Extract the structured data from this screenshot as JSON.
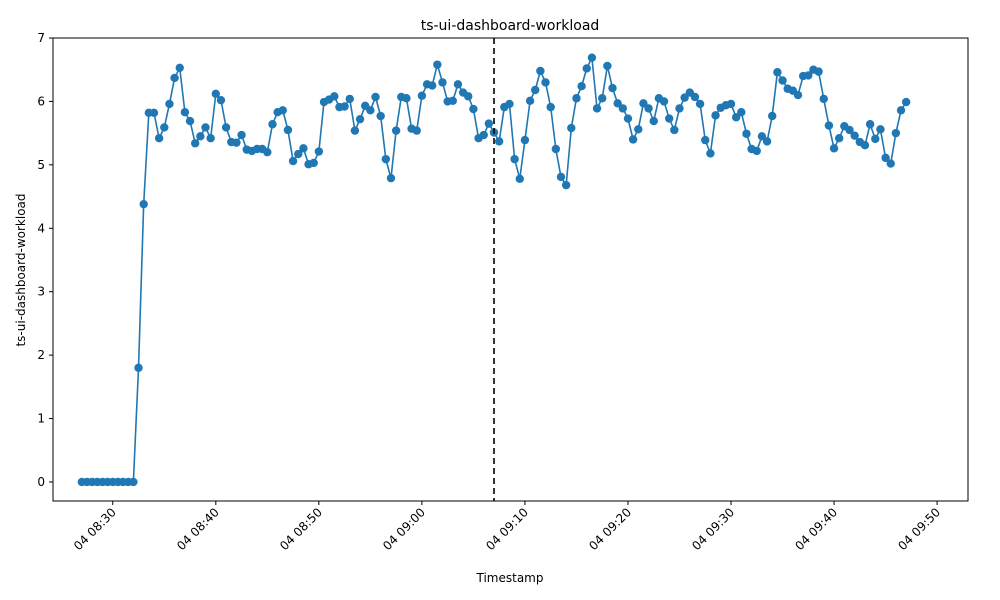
{
  "chart_data": {
    "type": "line",
    "title": "ts-ui-dashboard-workload",
    "xlabel": "Timestamp",
    "ylabel": "ts-ui-dashboard-workload",
    "x_start": "2025-04-04T08:27:00",
    "x_step_minutes": 0.5,
    "ylim": [
      -0.3,
      7
    ],
    "y_ticks": [
      0,
      1,
      2,
      3,
      4,
      5,
      6,
      7
    ],
    "x_ticks": [
      "04 08:30",
      "04 08:40",
      "04 08:50",
      "04 09:00",
      "04 09:10",
      "04 09:20",
      "04 09:30",
      "04 09:40",
      "04 09:50"
    ],
    "vertical_line_at": "04 09:07",
    "grid": false,
    "series": [
      {
        "color": "#1f77b4",
        "marker": "circle",
        "values": [
          0,
          0,
          0,
          0,
          0,
          0,
          0,
          0,
          0,
          0,
          0,
          1.8,
          4.38,
          5.82,
          5.82,
          5.42,
          5.59,
          5.96,
          6.37,
          6.53,
          5.83,
          5.69,
          5.34,
          5.45,
          5.59,
          5.42,
          6.12,
          6.02,
          5.59,
          5.36,
          5.35,
          5.47,
          5.24,
          5.22,
          5.25,
          5.25,
          5.2,
          5.64,
          5.83,
          5.86,
          5.55,
          5.06,
          5.17,
          5.26,
          5.01,
          5.03,
          5.21,
          5.99,
          6.03,
          6.08,
          5.91,
          5.92,
          6.04,
          5.54,
          5.72,
          5.93,
          5.86,
          6.07,
          5.77,
          5.09,
          4.79,
          5.54,
          6.07,
          6.05,
          5.57,
          5.54,
          6.09,
          6.27,
          6.25,
          6.58,
          6.3,
          6.0,
          6.01,
          6.27,
          6.14,
          6.08,
          5.88,
          5.42,
          5.47,
          5.65,
          5.51,
          5.37,
          5.91,
          5.96,
          5.09,
          4.78,
          5.39,
          6.01,
          6.18,
          6.48,
          6.3,
          5.91,
          5.25,
          4.81,
          4.68,
          5.58,
          6.05,
          6.24,
          6.52,
          6.69,
          5.89,
          6.05,
          6.56,
          6.21,
          5.97,
          5.89,
          5.73,
          5.4,
          5.56,
          5.97,
          5.89,
          5.69,
          6.05,
          6.0,
          5.73,
          5.55,
          5.89,
          6.06,
          6.14,
          6.07,
          5.96,
          5.39,
          5.18,
          5.78,
          5.9,
          5.94,
          5.96,
          5.75,
          5.83,
          5.49,
          5.25,
          5.22,
          5.45,
          5.37,
          5.77,
          6.46,
          6.33,
          6.2,
          6.17,
          6.1,
          6.4,
          6.41,
          6.5,
          6.47,
          6.04,
          5.62,
          5.26,
          5.42,
          5.61,
          5.55,
          5.46,
          5.36,
          5.31,
          5.64,
          5.41,
          5.56,
          5.11,
          5.02,
          5.5,
          5.86,
          5.99
        ]
      }
    ]
  }
}
